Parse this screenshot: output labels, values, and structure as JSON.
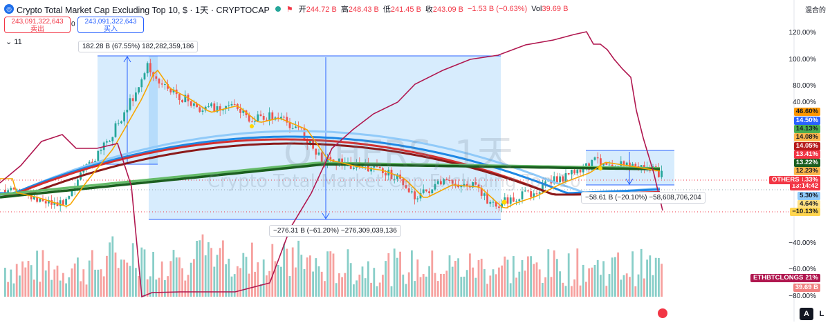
{
  "header": {
    "title": "Crypto Total Market Cap Excluding Top 10, $ · 1天 · CRYPTOCAP",
    "open_k": "开",
    "open_v": "244.72 B",
    "high_k": "高",
    "high_v": "248.43 B",
    "low_k": "低",
    "low_v": "241.45 B",
    "close_k": "收",
    "close_v": "243.09 B",
    "change": "−1.53 B (−0.63%)",
    "vol_k": "Vol",
    "vol_v": "39.69 B"
  },
  "trade": {
    "sell_price": "243,091,322,643",
    "sell_label": "卖出",
    "buy_price": "243,091,322,643",
    "buy_label": "买入",
    "spread": "0"
  },
  "indicators_collapsed": "11",
  "mode": "混合的",
  "watermark": {
    "symbol": "OTHERS, 1天",
    "name": "Crypto Total Market Cap Excluding Top 10"
  },
  "measures": {
    "m1": "182.28 B (67.55%) 182,282,359,186",
    "m2": "−276.31 B (−61.20%) −276,309,039,136",
    "m3": "−58.61 B (−20.10%) −58,608,706,204"
  },
  "chart_data": {
    "type": "candlestick",
    "yaxis_ticks": [
      "120.00%",
      "100.00%",
      "80.00%",
      "40.00%",
      "−40.00%",
      "−60.00%",
      "−80.00%"
    ],
    "price_tags": [
      {
        "label": "46.60%",
        "color": "#ff9800",
        "text": "#131722"
      },
      {
        "label": "14.50%",
        "color": "#2962ff",
        "text": "#ffffff"
      },
      {
        "label": "14.13%",
        "color": "#4caf50",
        "text": "#131722"
      },
      {
        "label": "14.08%",
        "color": "#ffb74d",
        "text": "#131722"
      },
      {
        "label": "14.05%",
        "color": "#b71c1c",
        "text": "#ffffff"
      },
      {
        "label": "13.41%",
        "color": "#f23645",
        "text": "#ffffff"
      },
      {
        "label": "13.22%",
        "color": "#1b5e20",
        "text": "#ffffff"
      },
      {
        "label": "12.23%",
        "color": "#ffb74d",
        "text": "#131722"
      },
      {
        "label": "+8.33%",
        "color": "#f23645",
        "text": "#ffffff"
      },
      {
        "label": "13:14:42",
        "color": "#f23645",
        "text": "#ffffff"
      },
      {
        "label": "5.30%",
        "color": "#90caf9",
        "text": "#131722"
      },
      {
        "label": "4.64%",
        "color": "#ffe082",
        "text": "#131722"
      },
      {
        "label": "−10.13%",
        "color": "#ffd54f",
        "text": "#131722"
      },
      {
        "label": "−16.21%",
        "color": "#b0174f",
        "text": "#ffffff"
      },
      {
        "label": "39.69 B",
        "color": "#f08080",
        "text": "#ffffff"
      }
    ],
    "symbol_tags": [
      {
        "label": "OTHERS",
        "color": "#f23645"
      },
      {
        "label": "ETHBTCLONGS",
        "color": "#b0174f"
      }
    ],
    "ylim": [
      -90,
      125
    ]
  },
  "bottom": {
    "percent_btn": "A",
    "log_btn": "L"
  }
}
